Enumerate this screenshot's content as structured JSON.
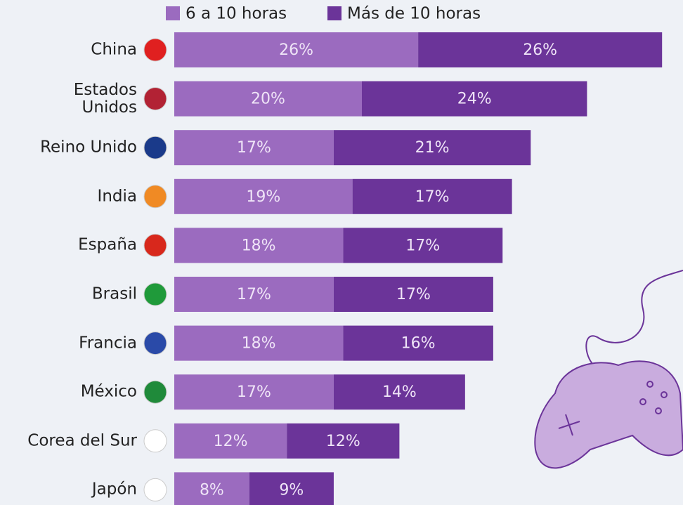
{
  "chart_data": {
    "type": "stacked-barh",
    "categories": [
      "China",
      "Estados\nUnidos",
      "Reino Unido",
      "India",
      "España",
      "Brasil",
      "Francia",
      "México",
      "Corea del Sur",
      "Japón"
    ],
    "series": [
      {
        "name": "6 a 10 horas",
        "color": "#9b6bbf",
        "values": [
          26,
          20,
          17,
          19,
          18,
          17,
          18,
          17,
          12,
          8
        ],
        "value_labels": [
          "26%",
          "20%",
          "17%",
          "19%",
          "18%",
          "17%",
          "18%",
          "17%",
          "12%",
          "8%"
        ]
      },
      {
        "name": "Más de 10 horas",
        "color": "#6b3499",
        "values": [
          26,
          24,
          21,
          17,
          17,
          17,
          16,
          14,
          12,
          9
        ],
        "value_labels": [
          "26%",
          "24%",
          "21%",
          "17%",
          "17%",
          "17%",
          "16%",
          "14%",
          "12%",
          "9%"
        ]
      }
    ],
    "legend": "top"
  }
}
